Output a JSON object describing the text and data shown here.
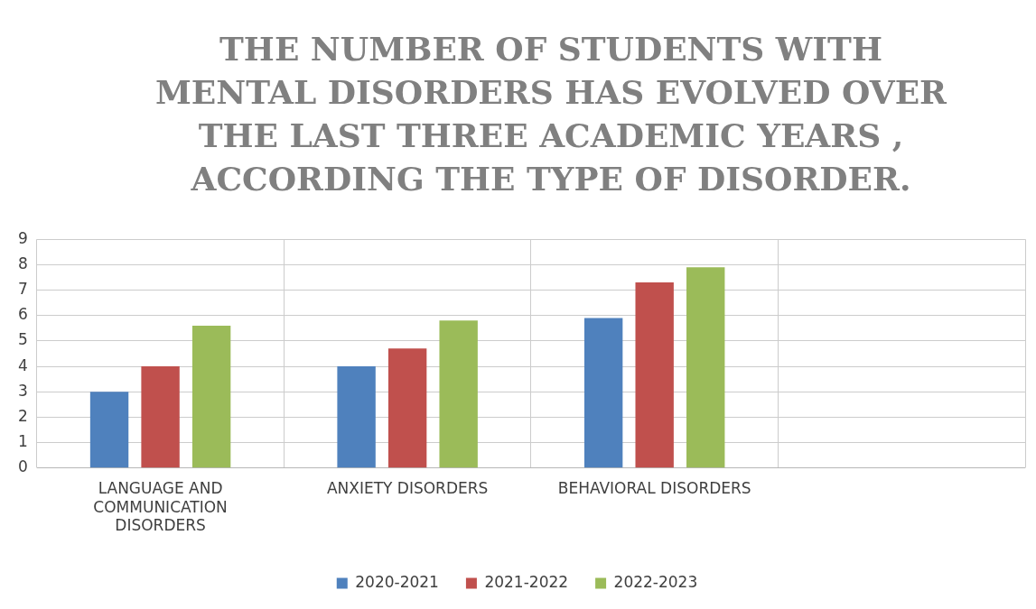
{
  "chart_data": {
    "type": "bar",
    "title": "THE NUMBER OF STUDENTS WITH MENTAL DISORDERS HAS EVOLVED OVER THE LAST THREE ACADEMIC YEARS , ACCORDING THE TYPE OF DISORDER.",
    "categories": [
      "LANGUAGE AND COMMUNICATION DISORDERS",
      "ANXIETY DISORDERS",
      "BEHAVIORAL DISORDERS",
      null
    ],
    "series": [
      {
        "name": "2020-2021",
        "color": "#4f81bd",
        "values": [
          3,
          4,
          5.9,
          null
        ]
      },
      {
        "name": "2021-2022",
        "color": "#c0504d",
        "values": [
          4,
          4.7,
          7.3,
          null
        ]
      },
      {
        "name": "2022-2023",
        "color": "#9bbb59",
        "values": [
          5.6,
          5.8,
          7.9,
          null
        ]
      }
    ],
    "ylim": [
      0,
      9
    ],
    "yticks": [
      0,
      1,
      2,
      3,
      4,
      5,
      6,
      7,
      8,
      9
    ],
    "grid": true,
    "legend": "bottom"
  }
}
